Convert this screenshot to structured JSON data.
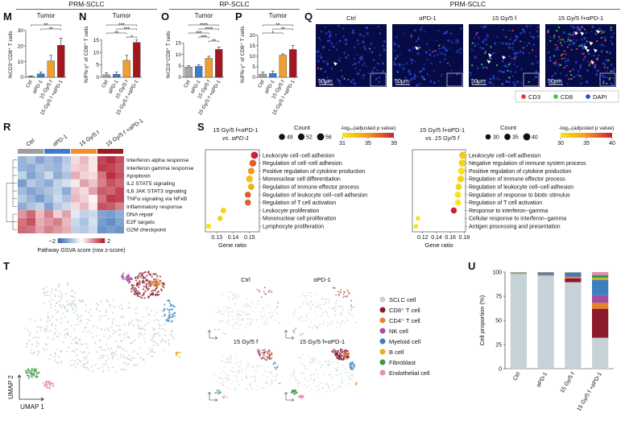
{
  "headers": [
    "PRM-SCLC",
    "RP-SCLC",
    "PRM-SCLC"
  ],
  "chart_data": [
    {
      "type": "bar",
      "panel": "M",
      "title": "Tumor",
      "y_label": "%CD3⁺CD8⁺ T cells",
      "categories": [
        "Ctrl",
        "αPD-1",
        "15 Gy/5 f",
        "15 Gy/5 f +αPD-1"
      ],
      "values": [
        0.6,
        2.2,
        10.5,
        20.5
      ],
      "errors": [
        0.3,
        1.2,
        3.5,
        4.5
      ],
      "colors": [
        "#a6a6a6",
        "#3d7cc9",
        "#f0a030",
        "#a3171e"
      ],
      "ylim": [
        0,
        35
      ],
      "yticks": [
        0,
        10,
        20,
        30
      ],
      "significance": [
        {
          "pair": [
            0,
            3
          ],
          "label": "**"
        },
        {
          "pair": [
            1,
            3
          ],
          "label": "**"
        }
      ]
    },
    {
      "type": "bar",
      "panel": "N",
      "title": "Tumor",
      "y_label": "%IFN-γ⁺ of CD8⁺ T cells",
      "categories": [
        "Ctrl",
        "αPD-1",
        "15 Gy/5 f",
        "15 Gy/5 f +αPD-1"
      ],
      "values": [
        1,
        1.2,
        6.8,
        14
      ],
      "errors": [
        0.8,
        0.9,
        2,
        1
      ],
      "colors": [
        "#a6a6a6",
        "#3d7cc9",
        "#f0a030",
        "#a3171e"
      ],
      "ylim": [
        0,
        22
      ],
      "yticks": [
        0,
        5,
        10,
        15
      ],
      "significance": [
        {
          "pair": [
            0,
            3
          ],
          "label": "***"
        },
        {
          "pair": [
            1,
            3
          ],
          "label": "***"
        },
        {
          "pair": [
            0,
            2
          ],
          "label": "**"
        },
        {
          "pair": [
            2,
            3
          ],
          "label": "*"
        }
      ]
    },
    {
      "type": "bar",
      "panel": "O",
      "title": "Tumor",
      "y_label": "%CD3⁺CD8⁺ T cells",
      "categories": [
        "Ctrl",
        "αPD-1",
        "15 Gy/5 f",
        "15 Gy/5 f +αPD-1"
      ],
      "values": [
        4.5,
        4.8,
        8.3,
        12.2
      ],
      "errors": [
        0.6,
        0.7,
        0.9,
        1
      ],
      "colors": [
        "#a6a6a6",
        "#3d7cc9",
        "#f0a030",
        "#a3171e"
      ],
      "ylim": [
        0,
        24
      ],
      "yticks": [
        0,
        5,
        10,
        15
      ],
      "significance": [
        {
          "pair": [
            0,
            3
          ],
          "label": "****"
        },
        {
          "pair": [
            1,
            3
          ],
          "label": "****"
        },
        {
          "pair": [
            0,
            2
          ],
          "label": "***"
        },
        {
          "pair": [
            1,
            2
          ],
          "label": "***"
        },
        {
          "pair": [
            2,
            3
          ],
          "label": "**"
        }
      ]
    },
    {
      "type": "bar",
      "panel": "P",
      "title": "Tumor",
      "y_label": "%IFN-γ⁺ of CD8⁺ T cells",
      "categories": [
        "Ctrl",
        "αPD-1",
        "15 Gy/5 f",
        "15 Gy/5 f +αPD-1"
      ],
      "values": [
        1.5,
        1.8,
        10.5,
        13.2
      ],
      "errors": [
        1,
        1.2,
        0.6,
        2
      ],
      "colors": [
        "#a6a6a6",
        "#3d7cc9",
        "#f0a030",
        "#a3171e"
      ],
      "ylim": [
        0,
        26
      ],
      "yticks": [
        0,
        5,
        10,
        15,
        20
      ],
      "significance": [
        {
          "pair": [
            0,
            3
          ],
          "label": "**"
        },
        {
          "pair": [
            1,
            3
          ],
          "label": "**"
        },
        {
          "pair": [
            0,
            2
          ],
          "label": "*"
        }
      ]
    },
    {
      "type": "heatmap",
      "panel": "R",
      "groups": [
        "Ctrl",
        "αPD-1",
        "15 Gy/5 f",
        "15 Gy/5 f +αPD-1"
      ],
      "group_colors": [
        "#9e9e9e",
        "#3d7cc9",
        "#f0902a",
        "#a3171e"
      ],
      "rows": [
        "Interferon alpha response",
        "Interferon gamma response",
        "Apoptosis",
        "IL2 STAT5 signaling",
        "IL6 JAK STAT3 signaling",
        "TNFα signaling via NFκB",
        "Inflammatory response",
        "DNA repair",
        "E2F targets",
        "G2M checkpoint"
      ],
      "values": [
        [
          -1,
          -0.8,
          -1.2,
          -0.9,
          -1.1,
          -0.7,
          0.3,
          0.6,
          0.2,
          1.6,
          1.8,
          1.5
        ],
        [
          -1,
          -1.1,
          -0.8,
          -0.9,
          -1,
          -0.6,
          0.4,
          0.5,
          0.2,
          1.7,
          1.6,
          1.4
        ],
        [
          -0.6,
          -1.2,
          -0.9,
          -0.5,
          -1.1,
          -0.8,
          0.7,
          0.4,
          0.3,
          1.2,
          1.8,
          1.5
        ],
        [
          -1.3,
          -0.7,
          -0.9,
          -1.1,
          -0.6,
          -0.4,
          0.2,
          0.8,
          0.5,
          1.1,
          1.5,
          1.3
        ],
        [
          -0.9,
          -1.2,
          -1,
          -0.8,
          -0.6,
          -1.1,
          0.5,
          0.3,
          0.8,
          1.4,
          1.3,
          1.6
        ],
        [
          -0.7,
          -1,
          -1.3,
          -0.9,
          -0.5,
          -0.8,
          0.6,
          0.4,
          0.1,
          1.2,
          1.7,
          1.6
        ],
        [
          -1.1,
          -0.8,
          -0.6,
          -1.2,
          -0.7,
          -0.5,
          0.3,
          0.6,
          0.2,
          1.5,
          1.4,
          1.1
        ],
        [
          0.9,
          1.3,
          0.6,
          1.1,
          0.4,
          0.8,
          -0.3,
          -0.6,
          -0.5,
          -1.2,
          -1.3,
          -1.1
        ],
        [
          1.2,
          1.5,
          0.7,
          0.9,
          1.1,
          0.6,
          -0.5,
          -0.8,
          -0.4,
          -1.3,
          -1.5,
          -1.2
        ],
        [
          1.3,
          1.2,
          0.8,
          1.1,
          0.9,
          0.7,
          -0.6,
          -0.7,
          -0.5,
          -1.4,
          -1.3,
          -1.4
        ]
      ],
      "zlim": [
        -2,
        2
      ],
      "zticks": [
        {
          "value": -2,
          "label": "−2"
        },
        2
      ],
      "colorbar_label": "Pathway GSVA score (row z-score)"
    },
    {
      "type": "dot",
      "panel": "S",
      "title": "15 Gy/5 f+αPD-1",
      "subtitle": "vs. αPD-1",
      "terms": [
        "Leukocyte cell−cell adhesion",
        "Regulation of cell−cell adhesion",
        "Positive regulation of cytokine production",
        "Mononuclear cell differentiation",
        "Regulation of immune effector process",
        "Regulation of leukocyte cell−cell adhesion",
        "Regulation of T cell activation",
        "Leukocyte proliferation",
        "Mononuclear cell proliferation",
        "Lymphocyte proliferation"
      ],
      "gene_ratio": [
        0.153,
        0.152,
        0.151,
        0.15,
        0.151,
        0.149,
        0.149,
        0.134,
        0.132,
        0.125
      ],
      "count": [
        56,
        54,
        52,
        54,
        50,
        48,
        48,
        44,
        42,
        40
      ],
      "neg_log10_padj": [
        39,
        37,
        35,
        33,
        34,
        37,
        37,
        32,
        32,
        31
      ],
      "x_label": "Gene ratio",
      "xlim": [
        0.123,
        0.156
      ],
      "xticks": [
        0.13,
        0.14,
        0.15
      ],
      "size_legend_title": "Count",
      "size_ticks": [
        48,
        52,
        56
      ],
      "color_legend_title": "-log₁₀(adjusted p value)",
      "clim": [
        31,
        39
      ],
      "color_ticks": [
        31,
        35,
        39
      ],
      "colors": [
        "#f7e31b",
        "#f39a1e",
        "#c81f3a"
      ]
    },
    {
      "type": "dot",
      "title": "15 Gy/5 f+αPD-1",
      "subtitle": "vs. 15 Gy/5 f",
      "terms": [
        "Leukocyte cell−cell adhesion",
        "Negative regulation of immune system process",
        "Positive regulation of cytokine production",
        "Regulation of immune effector process",
        "Regulation of leukocyte cell−cell adhesion",
        "Regulation of response to biotic stimulus",
        "Regulation of T cell activation",
        "Response to interferon−gamma",
        "Cellular response to interferon−gamma",
        "Antigen processing and presentation"
      ],
      "gene_ratio": [
        0.178,
        0.177,
        0.176,
        0.175,
        0.172,
        0.171,
        0.171,
        0.165,
        0.113,
        0.11
      ],
      "count": [
        41,
        40,
        39,
        38,
        36,
        36,
        35,
        34,
        27,
        26
      ],
      "neg_log10_padj": [
        32,
        31,
        30,
        31,
        31,
        30,
        30,
        40,
        30,
        30
      ],
      "x_label": "Gene ratio",
      "xlim": [
        0.105,
        0.182
      ],
      "xticks": [
        0.12,
        0.14,
        0.16,
        0.18
      ],
      "size_legend_title": "Count",
      "size_ticks": [
        30,
        35,
        40
      ],
      "color_legend_title": "-log₁₀(adjusted p value)",
      "clim": [
        30,
        40
      ],
      "color_ticks": [
        30,
        35,
        40
      ],
      "colors": [
        "#f7e31b",
        "#f39a1e",
        "#c81f3a"
      ]
    },
    {
      "type": "stacked_bar",
      "panel": "U",
      "y_label": "Cell proportion (%)",
      "categories": [
        "Ctrl",
        "αPD-1",
        "15 Gy/5 f",
        "15 Gy/5 f +αPD-1"
      ],
      "ylim": [
        0,
        100
      ],
      "yticks": [
        0,
        25,
        50,
        75,
        100
      ],
      "series": [
        {
          "name": "SCLC cell",
          "color": "#c5d3d8",
          "values": [
            98.2,
            96.5,
            89.5,
            32
          ]
        },
        {
          "name": "CD8⁺ T cell",
          "color": "#8b1a2b",
          "values": [
            0.3,
            0.5,
            4,
            30
          ]
        },
        {
          "name": "CD4⁺ T cell",
          "color": "#e8832a",
          "values": [
            0.2,
            0.3,
            1.5,
            6
          ]
        },
        {
          "name": "NK cell",
          "color": "#a54ea0",
          "values": [
            0.2,
            0.3,
            0.5,
            8
          ]
        },
        {
          "name": "Myeloid cell",
          "color": "#3c7fc0",
          "values": [
            0.5,
            2,
            4,
            16
          ]
        },
        {
          "name": "B cell",
          "color": "#e8b020",
          "values": [
            0.2,
            0.2,
            0.3,
            2
          ]
        },
        {
          "name": "Fibroblast",
          "color": "#3a9a48",
          "values": [
            0.3,
            0.1,
            0.1,
            3
          ]
        },
        {
          "name": "Endothelial cell",
          "color": "#e88bb8",
          "values": [
            0.1,
            0.1,
            0.1,
            3
          ]
        }
      ]
    }
  ],
  "micrographs": {
    "panel": "Q",
    "titles": [
      "Ctrl",
      "αPD-1",
      "15 Gy/5 f",
      "15 Gy/5 f+αPD-1"
    ],
    "scale_bar": "50μm",
    "channels": [
      {
        "name": "CD3",
        "color": "#e8343a"
      },
      {
        "name": "CD8",
        "color": "#3cc04a"
      },
      {
        "name": "DAPI",
        "color": "#2747d8"
      }
    ]
  },
  "umap": {
    "panel": "T",
    "x_label": "UMAP 1",
    "y_label": "UMAP 2",
    "titles": [
      "Ctrl",
      "αPD-1",
      "15 Gy/5 f",
      "15 Gy/5 f+αPD-1"
    ]
  }
}
